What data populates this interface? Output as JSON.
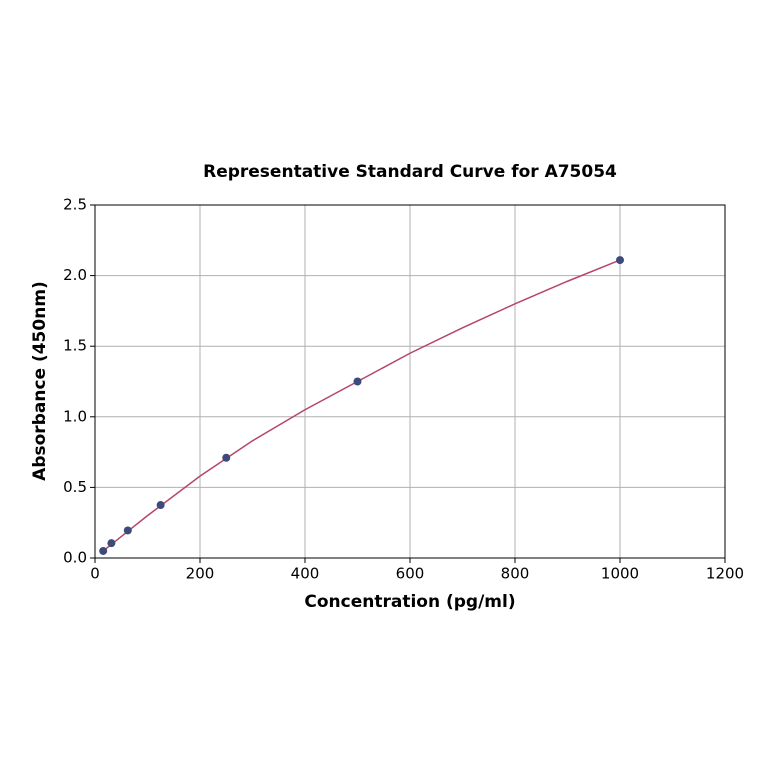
{
  "chart_data": {
    "type": "scatter",
    "title": "Representative Standard Curve for A75054",
    "xlabel": "Concentration (pg/ml)",
    "ylabel": "Absorbance (450nm)",
    "xlim": [
      0,
      1200
    ],
    "ylim": [
      0,
      2.5
    ],
    "xticks": [
      0,
      200,
      400,
      600,
      800,
      1000,
      1200
    ],
    "yticks": [
      {
        "value": 0,
        "label": "0.0"
      },
      {
        "value": 0.5,
        "label": "0.5"
      },
      {
        "value": 1,
        "label": "1.0"
      },
      {
        "value": 1.5,
        "label": "1.5"
      },
      {
        "value": 2,
        "label": "2.0"
      },
      {
        "value": 2.5,
        "label": "2.5"
      }
    ],
    "grid": true,
    "series": [
      {
        "type": "line",
        "color": "#b5466a",
        "x": [
          15.6,
          100,
          200,
          300,
          400,
          500,
          600,
          700,
          800,
          900,
          1000
        ],
        "values": [
          0.05,
          0.3,
          0.58,
          0.83,
          1.05,
          1.25,
          1.45,
          1.63,
          1.8,
          1.96,
          2.11
        ]
      },
      {
        "type": "scatter",
        "color": "#3d4a7a",
        "x": [
          15.6,
          31.25,
          62.5,
          125,
          250,
          500,
          1000
        ],
        "values": [
          0.05,
          0.105,
          0.195,
          0.375,
          0.71,
          1.25,
          2.11
        ]
      }
    ]
  }
}
